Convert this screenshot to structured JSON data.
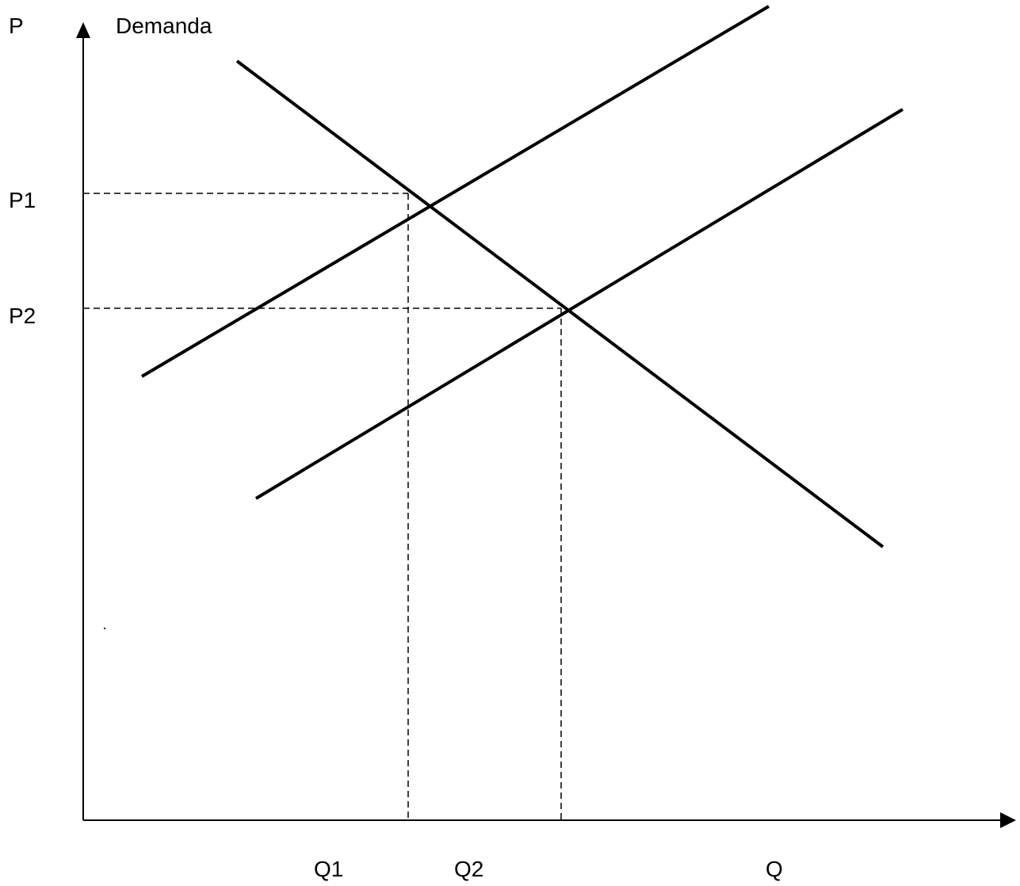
{
  "labels": {
    "price_axis": "P",
    "demand": "Demanda",
    "p1": "P1",
    "p2": "P2",
    "q1": "Q1",
    "q2": "Q2",
    "quantity_axis": "Q"
  },
  "colors": {
    "ink": "#000000",
    "background": "#ffffff"
  }
}
